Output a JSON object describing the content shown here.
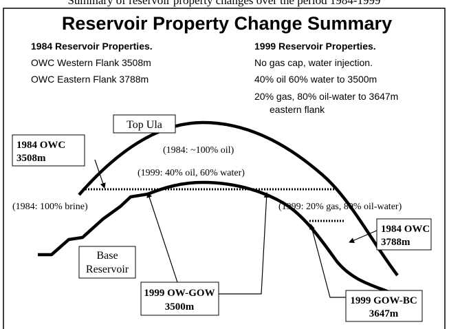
{
  "caption": "Summary of reservoir property changes over the period 1984-1999",
  "title": "Reservoir Property Change Summary",
  "left_column": {
    "heading": "1984 Reservoir Properties.",
    "lines": [
      "OWC Western Flank 3508m",
      "OWC Eastern Flank 3788m"
    ]
  },
  "right_column": {
    "heading": "1999 Reservoir Properties.",
    "lines": [
      "No gas cap, water injection.",
      "40% oil 60% water to 3500m",
      "20% gas, 80% oil-water to 3647m",
      "eastern flank"
    ]
  },
  "labels": {
    "top_ula": "Top Ula",
    "base_reservoir": [
      "Base",
      "Reservoir"
    ],
    "owc_1984_west": [
      "1984 OWC",
      "3508m"
    ],
    "owc_1984_east": [
      "1984 OWC",
      "3788m"
    ],
    "ow_gow_1999": [
      "1999 OW-GOW",
      "3500m"
    ],
    "gow_bc_1999": [
      "1999 GOW-BC",
      "3647m"
    ],
    "oil_1984": "(1984: ~100% oil)",
    "oil_water_1999": "(1999: 40% oil, 60% water)",
    "brine_1984": "(1984: 100% brine)",
    "gas_1999": "(1999: 20%  gas, 80% oil-water)"
  }
}
